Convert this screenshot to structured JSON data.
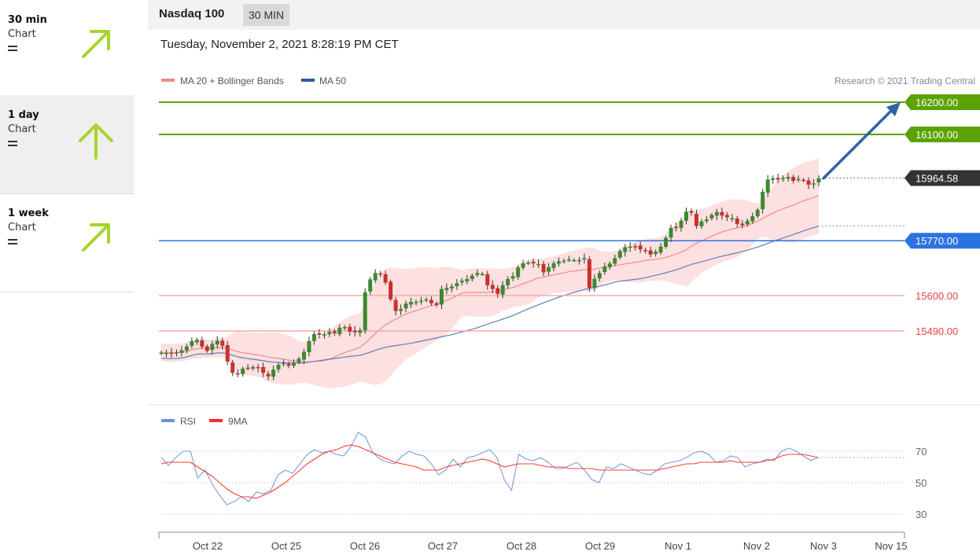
{
  "sidebar": {
    "timeframes": [
      {
        "period": "30 min",
        "kind": "Chart",
        "trend_icon": "arrow-up-right-icon",
        "equal_icon": "equals-icon",
        "selected": false
      },
      {
        "period": "1 day",
        "kind": "Chart",
        "trend_icon": "arrow-up-icon",
        "equal_icon": "equals-icon",
        "selected": true
      },
      {
        "period": "1 week",
        "kind": "Chart",
        "trend_icon": "arrow-up-right-icon",
        "equal_icon": "equals-icon",
        "selected": false
      }
    ],
    "arrow_color": "#a6d62b"
  },
  "header": {
    "title": "Nasdaq 100",
    "timeframe": "30 MIN"
  },
  "datetime": "Tuesday, November 2, 2021 8:28:19 PM CET",
  "colors": {
    "green": "#5aa300",
    "red": "#e64545",
    "blue": "#2b73e0",
    "band": "#fde0e0",
    "ma20": "#f28b8b",
    "ma50": "#5d7fb8",
    "up_candle": "#3a8a2e",
    "down_candle": "#c9302c",
    "projection": "#2f63a8",
    "rsi": "#7a9be0",
    "rsi_ma": "#ff3b30"
  },
  "chart_data": [
    {
      "type": "candlestick",
      "title": "Nasdaq 100",
      "legend": [
        {
          "name": "MA 20 + Bollinger Bands",
          "color": "#f28b8b"
        },
        {
          "name": "MA 50",
          "color": "#2f5aa0"
        }
      ],
      "legend_position": "top-left",
      "credit": "Research © 2021 Trading Central",
      "x_ticks": [
        "Oct 22",
        "Oct 25",
        "Oct 26",
        "Oct 27",
        "Oct 28",
        "Oct 29",
        "Nov 1",
        "Nov 2",
        "Nov 3",
        "Nov 15"
      ],
      "ylim": [
        15280,
        16260
      ],
      "last_price": {
        "label": "15964.58",
        "value": 15964.58
      },
      "levels": [
        {
          "label": "16200.00",
          "value": 16200,
          "kind": "resistance"
        },
        {
          "label": "16100.00",
          "value": 16100,
          "kind": "resistance"
        },
        {
          "label": "15770.00",
          "value": 15770,
          "kind": "pivot"
        },
        {
          "label": "15600.00",
          "value": 15600,
          "kind": "support"
        },
        {
          "label": "15490.00",
          "value": 15490,
          "kind": "support"
        }
      ],
      "projection": {
        "from": 15964,
        "to": 16200
      },
      "close": [
        15423,
        15422,
        15420,
        15424,
        15430,
        15442,
        15458,
        15462,
        15441,
        15428,
        15450,
        15460,
        15444,
        15395,
        15360,
        15355,
        15373,
        15375,
        15378,
        15376,
        15360,
        15349,
        15370,
        15385,
        15390,
        15382,
        15391,
        15404,
        15425,
        15458,
        15480,
        15478,
        15480,
        15487,
        15483,
        15500,
        15502,
        15488,
        15486,
        15492,
        15610,
        15650,
        15670,
        15665,
        15640,
        15588,
        15552,
        15558,
        15575,
        15580,
        15580,
        15584,
        15588,
        15576,
        15570,
        15620,
        15623,
        15628,
        15638,
        15646,
        15651,
        15662,
        15670,
        15667,
        15632,
        15620,
        15605,
        15632,
        15651,
        15660,
        15687,
        15700,
        15702,
        15700,
        15698,
        15672,
        15688,
        15700,
        15706,
        15708,
        15712,
        15710,
        15710,
        15716,
        15624,
        15652,
        15670,
        15690,
        15699,
        15716,
        15738,
        15750,
        15752,
        15752,
        15743,
        15740,
        15727,
        15736,
        15752,
        15779,
        15810,
        15812,
        15832,
        15860,
        15857,
        15816,
        15830,
        15836,
        15850,
        15859,
        15848,
        15843,
        15840,
        15822,
        15818,
        15832,
        15846,
        15866,
        15922,
        15960,
        15964,
        15960,
        15965,
        15968,
        15956,
        15962,
        15958,
        15944,
        15948,
        15964
      ]
    },
    {
      "type": "line",
      "title": "RSI",
      "legend": [
        {
          "name": "RSI",
          "color": "#6e8fd8"
        },
        {
          "name": "9MA",
          "color": "#ff2a2a"
        }
      ],
      "y_ticks": [
        30,
        50,
        70
      ],
      "ylim": [
        20,
        85
      ],
      "rsi": [
        66,
        61,
        66,
        70,
        70,
        53,
        58,
        49,
        42,
        36,
        38,
        41,
        38,
        44,
        43,
        45,
        55,
        58,
        56,
        62,
        68,
        71,
        69,
        70,
        68,
        67,
        73,
        82,
        79,
        69,
        65,
        63,
        62,
        67,
        70,
        68,
        67,
        62,
        55,
        58,
        65,
        60,
        66,
        67,
        69,
        71,
        66,
        52,
        45,
        68,
        65,
        64,
        66,
        63,
        59,
        59,
        61,
        63,
        58,
        52,
        50,
        60,
        59,
        62,
        60,
        58,
        56,
        55,
        58,
        62,
        63,
        64,
        66,
        69,
        70,
        68,
        63,
        64,
        67,
        66,
        60,
        62,
        63,
        65,
        64,
        70,
        72,
        70,
        67,
        64,
        66
      ],
      "rsi_ma": [
        62,
        63,
        63,
        63,
        63,
        60,
        57,
        54,
        50,
        46,
        43,
        41,
        41,
        40,
        42,
        44,
        47,
        50,
        54,
        58,
        62,
        65,
        68,
        70,
        71,
        73,
        74,
        73,
        71,
        69,
        67,
        65,
        63,
        62,
        61,
        60,
        58,
        58,
        58,
        60,
        61,
        62,
        63,
        64,
        65,
        64,
        62,
        60,
        61,
        62,
        62,
        62,
        61,
        60,
        60,
        60,
        59,
        59,
        59,
        59,
        58,
        58,
        58,
        58,
        58,
        58,
        58,
        58,
        58,
        59,
        60,
        61,
        62,
        62,
        63,
        63,
        63,
        63,
        64,
        63,
        63,
        63,
        63,
        64,
        65,
        67,
        68,
        68,
        68,
        67,
        66
      ]
    }
  ]
}
